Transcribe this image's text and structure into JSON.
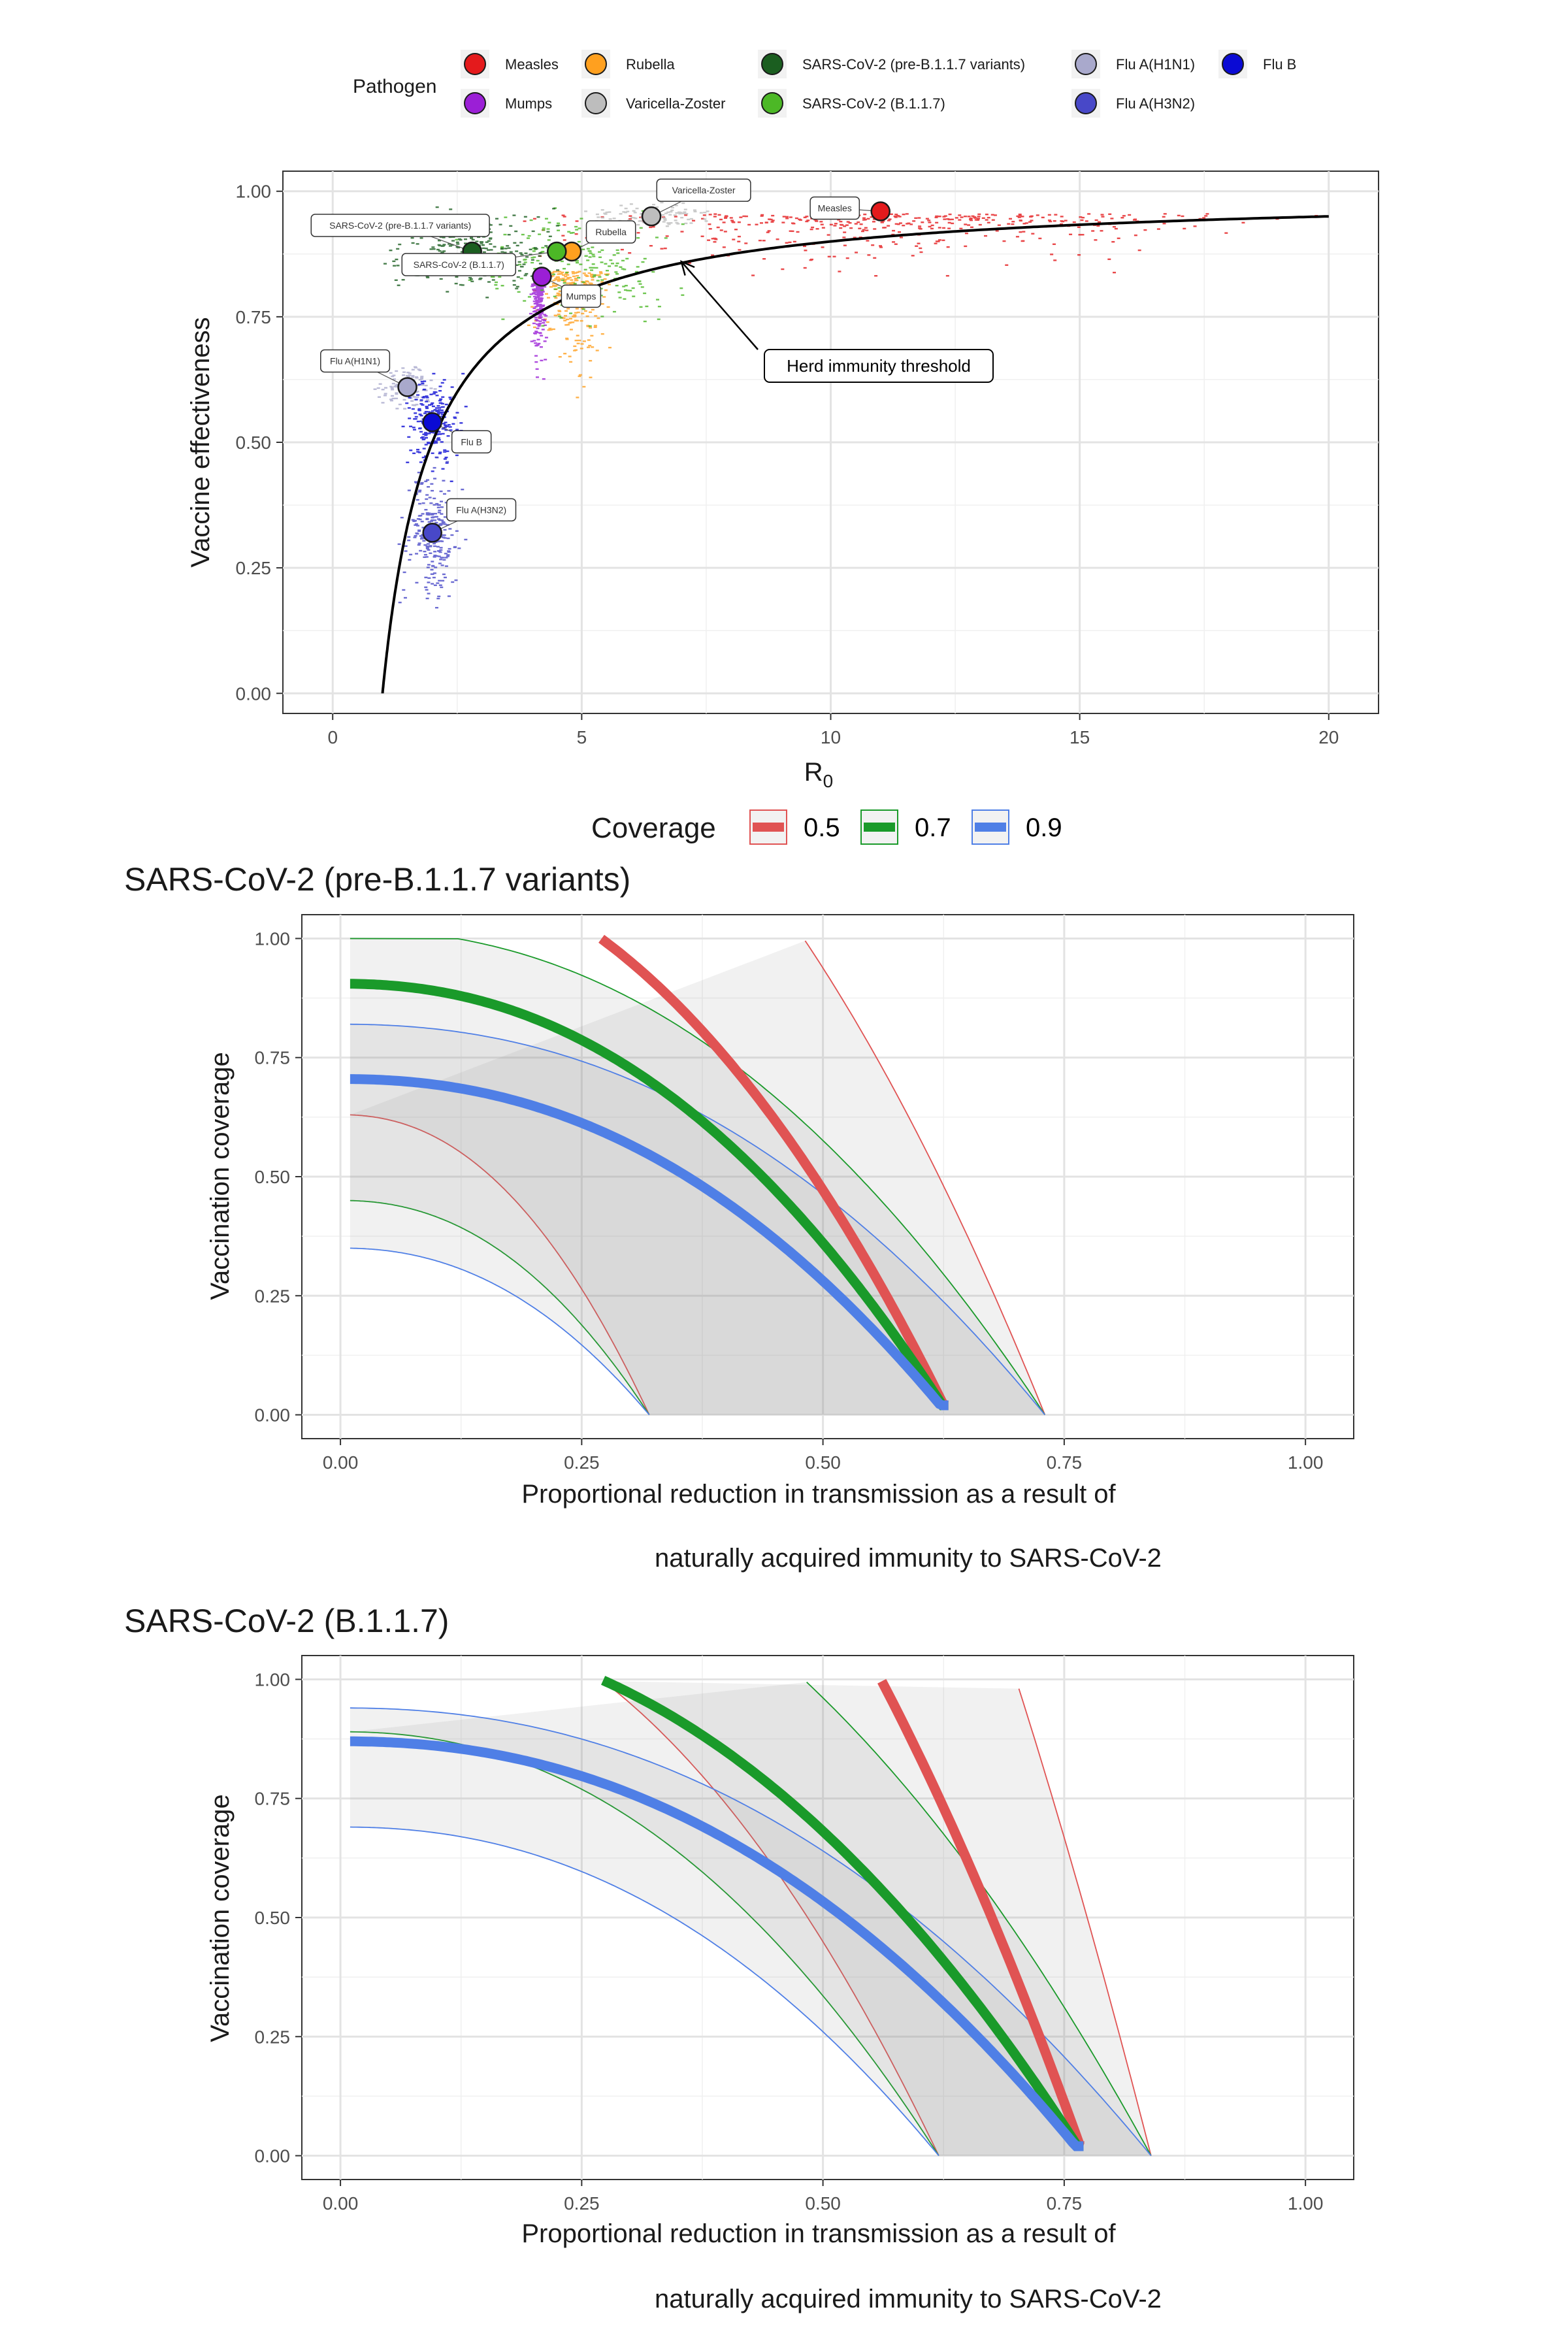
{
  "chart_data": [
    {
      "type": "scatter",
      "xlabel": "R",
      "xlabel_sub": "0",
      "ylabel": "Vaccine effectiveness",
      "xlim": [
        -1,
        21
      ],
      "ylim": [
        -0.04,
        1.04
      ],
      "xticks": [
        0,
        5,
        10,
        15,
        20
      ],
      "yticks": [
        0,
        0.25,
        0.5,
        0.75,
        1.0
      ],
      "xtick_labels": [
        "0",
        "5",
        "10",
        "15",
        "20"
      ],
      "ytick_labels": [
        "0.00",
        "0.25",
        "0.50",
        "0.75",
        "1.00"
      ],
      "grid": true,
      "legend": {
        "title": "Pathogen",
        "position": "top",
        "items": [
          {
            "name": "Measles",
            "color": "#e41a1c"
          },
          {
            "name": "Mumps",
            "color": "#9b1fd6"
          },
          {
            "name": "Rubella",
            "color": "#ffa01f"
          },
          {
            "name": "Varicella-Zoster",
            "color": "#bdbdbd"
          },
          {
            "name": "SARS-CoV-2 (pre-B.1.1.7 variants)",
            "color": "#1b5e20"
          },
          {
            "name": "SARS-CoV-2 (B.1.1.7)",
            "color": "#4cb826"
          },
          {
            "name": "Flu A(H1N1)",
            "color": "#a9a9cc"
          },
          {
            "name": "Flu A(H3N2)",
            "color": "#4848c8"
          },
          {
            "name": "Flu B",
            "color": "#0a0ad4"
          }
        ]
      },
      "points": [
        {
          "name": "Measles",
          "x": 11.0,
          "y": 0.96,
          "label": "Measles"
        },
        {
          "name": "Varicella-Zoster",
          "x": 6.4,
          "y": 0.95,
          "label": "Varicella-Zoster"
        },
        {
          "name": "SARS-CoV-2 (pre-B.1.1.7 variants)",
          "x": 2.8,
          "y": 0.88,
          "label": "SARS-CoV-2 (pre-B.1.1.7 variants)"
        },
        {
          "name": "Rubella",
          "x": 4.8,
          "y": 0.88,
          "label": "Rubella"
        },
        {
          "name": "SARS-CoV-2 (B.1.1.7)",
          "x": 4.5,
          "y": 0.88,
          "label": "SARS-CoV-2 (B.1.1.7)"
        },
        {
          "name": "Mumps",
          "x": 4.2,
          "y": 0.83,
          "label": "Mumps"
        },
        {
          "name": "Flu A(H1N1)",
          "x": 1.5,
          "y": 0.61,
          "label": "Flu A(H1N1)"
        },
        {
          "name": "Flu B",
          "x": 2.0,
          "y": 0.54,
          "label": "Flu B"
        },
        {
          "name": "Flu A(H3N2)",
          "x": 2.0,
          "y": 0.32,
          "label": "Flu A(H3N2)"
        }
      ],
      "curve": {
        "name": "Herd immunity threshold",
        "formula": "1 - 1/R0",
        "x_range": [
          1,
          20
        ]
      },
      "annotation": {
        "text": "Herd immunity threshold",
        "arrow_to": {
          "x": 7.0,
          "y": 0.86
        }
      }
    },
    {
      "type": "area",
      "title": "SARS-CoV-2 (pre-B.1.1.7 variants)",
      "xlabel_lines": [
        "Proportional reduction in transmission as a result of",
        "naturally acquired immunity to SARS-CoV-2"
      ],
      "ylabel": "Vaccination coverage",
      "xlim": [
        -0.04,
        1.05
      ],
      "ylim": [
        -0.05,
        1.05
      ],
      "xticks": [
        0,
        0.25,
        0.5,
        0.75,
        1.0
      ],
      "yticks": [
        0,
        0.25,
        0.5,
        0.75,
        1.0
      ],
      "xtick_labels": [
        "0.00",
        "0.25",
        "0.50",
        "0.75",
        "1.00"
      ],
      "ytick_labels": [
        "0.00",
        "0.25",
        "0.50",
        "0.75",
        "1.00"
      ],
      "legend": {
        "title": "Coverage",
        "items": [
          {
            "name": "0.5",
            "color": "#e05353"
          },
          {
            "name": "0.7",
            "color": "#1a9a2a"
          },
          {
            "name": "0.9",
            "color": "#4f7fe6"
          }
        ]
      },
      "series": [
        {
          "name": "0.5",
          "color": "#e05353",
          "central": {
            "p": 0.63,
            "r": 0.27
          },
          "lower": {
            "p": 0.32,
            "r": 0.0
          },
          "upper": {
            "p": 0.73,
            "r": 0.48
          }
        },
        {
          "name": "0.7",
          "color": "#1a9a2a",
          "central": {
            "p": 0.63,
            "r": 0.0
          },
          "lower": {
            "p": 0.32,
            "r": 0.0
          },
          "upper": {
            "p": 0.73,
            "r": 0.12
          }
        },
        {
          "name": "0.9",
          "color": "#4f7fe6",
          "central": {
            "p": 0.63,
            "r": 0.0
          },
          "lower": {
            "p": 0.32,
            "r": 0.0
          },
          "upper": {
            "p": 0.73,
            "r": 0.0
          }
        }
      ]
    },
    {
      "type": "area",
      "title": "SARS-CoV-2 (B.1.1.7)",
      "xlabel_lines": [
        "Proportional reduction in transmission as a result of",
        "naturally acquired immunity to SARS-CoV-2"
      ],
      "ylabel": "Vaccination coverage",
      "xlim": [
        -0.04,
        1.05
      ],
      "ylim": [
        -0.05,
        1.05
      ],
      "xticks": [
        0,
        0.25,
        0.5,
        0.75,
        1.0
      ],
      "yticks": [
        0,
        0.25,
        0.5,
        0.75,
        1.0
      ],
      "xtick_labels": [
        "0.00",
        "0.25",
        "0.50",
        "0.75",
        "1.00"
      ],
      "ytick_labels": [
        "0.00",
        "0.25",
        "0.50",
        "0.75",
        "1.00"
      ],
      "series": [
        {
          "name": "0.5",
          "color": "#e05353",
          "central": {
            "p": 0.77,
            "r": 0.56
          },
          "lower": {
            "p": 0.62,
            "r": 0.27
          },
          "upper": {
            "p": 0.84,
            "r": 0.7
          }
        },
        {
          "name": "0.7",
          "color": "#1a9a2a",
          "central": {
            "p": 0.77,
            "r": 0.27
          },
          "lower": {
            "p": 0.62,
            "r": 0.0
          },
          "upper": {
            "p": 0.84,
            "r": 0.48
          }
        },
        {
          "name": "0.9",
          "color": "#4f7fe6",
          "central": {
            "p": 0.77,
            "r": 0.0
          },
          "lower": {
            "p": 0.62,
            "r": 0.0
          },
          "upper": {
            "p": 0.84,
            "r": 0.0
          }
        }
      ]
    }
  ]
}
